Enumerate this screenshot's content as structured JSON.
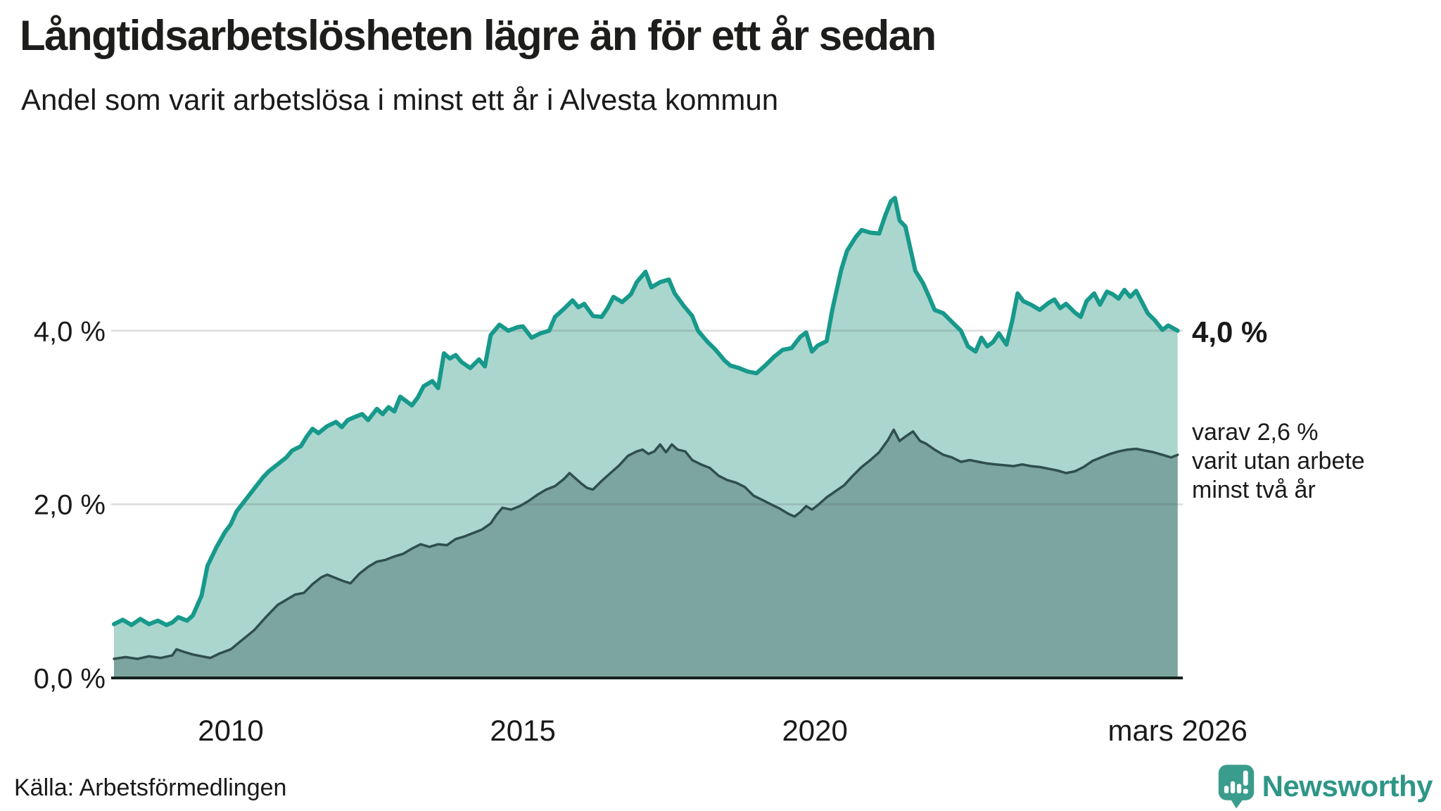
{
  "header": {
    "title": "Långtidsarbetslösheten lägre än för ett år sedan",
    "subtitle": "Andel som varit arbetslösa i minst ett år i Alvesta kommun"
  },
  "chart_data": {
    "type": "area",
    "title": "Långtidsarbetslösheten lägre än för ett år sedan",
    "subtitle": "Andel som varit arbetslösa i minst ett år i Alvesta kommun",
    "unit": "%",
    "xlabel": "",
    "ylabel": "",
    "xlim": [
      2008.0,
      2026.25
    ],
    "ylim": [
      0,
      5.9
    ],
    "grid": "horizontal",
    "legend_position": "none",
    "xticks": [
      {
        "value": 2010,
        "label": "2010"
      },
      {
        "value": 2015,
        "label": "2015"
      },
      {
        "value": 2020,
        "label": "2020"
      },
      {
        "value": 2026.21,
        "label": "mars 2026"
      }
    ],
    "yticks": [
      {
        "value": 0,
        "label": "0,0 %"
      },
      {
        "value": 2,
        "label": "2,0 %"
      },
      {
        "value": 4,
        "label": "4,0 %"
      }
    ],
    "series": [
      {
        "name": "Andel som varit arbetslösa minst ett år",
        "line_color": "#17998b",
        "fill_color": "#aad6ce",
        "end_value_label": "4,0 %",
        "points": [
          [
            2008.0,
            0.62
          ],
          [
            2008.15,
            0.67
          ],
          [
            2008.3,
            0.61
          ],
          [
            2008.45,
            0.68
          ],
          [
            2008.6,
            0.62
          ],
          [
            2008.75,
            0.66
          ],
          [
            2008.9,
            0.61
          ],
          [
            2009.0,
            0.64
          ],
          [
            2009.1,
            0.7
          ],
          [
            2009.25,
            0.66
          ],
          [
            2009.35,
            0.72
          ],
          [
            2009.5,
            0.95
          ],
          [
            2009.6,
            1.29
          ],
          [
            2009.75,
            1.5
          ],
          [
            2009.9,
            1.68
          ],
          [
            2010.0,
            1.77
          ],
          [
            2010.1,
            1.92
          ],
          [
            2010.25,
            2.05
          ],
          [
            2010.4,
            2.18
          ],
          [
            2010.55,
            2.31
          ],
          [
            2010.65,
            2.38
          ],
          [
            2010.8,
            2.46
          ],
          [
            2010.95,
            2.54
          ],
          [
            2011.05,
            2.62
          ],
          [
            2011.2,
            2.67
          ],
          [
            2011.3,
            2.78
          ],
          [
            2011.4,
            2.87
          ],
          [
            2011.5,
            2.82
          ],
          [
            2011.65,
            2.9
          ],
          [
            2011.8,
            2.95
          ],
          [
            2011.9,
            2.89
          ],
          [
            2012.0,
            2.97
          ],
          [
            2012.1,
            3.0
          ],
          [
            2012.25,
            3.04
          ],
          [
            2012.35,
            2.97
          ],
          [
            2012.5,
            3.1
          ],
          [
            2012.6,
            3.04
          ],
          [
            2012.7,
            3.12
          ],
          [
            2012.8,
            3.07
          ],
          [
            2012.9,
            3.24
          ],
          [
            2013.0,
            3.19
          ],
          [
            2013.1,
            3.14
          ],
          [
            2013.2,
            3.23
          ],
          [
            2013.3,
            3.36
          ],
          [
            2013.45,
            3.42
          ],
          [
            2013.55,
            3.34
          ],
          [
            2013.65,
            3.74
          ],
          [
            2013.75,
            3.68
          ],
          [
            2013.85,
            3.72
          ],
          [
            2013.95,
            3.64
          ],
          [
            2014.1,
            3.57
          ],
          [
            2014.25,
            3.67
          ],
          [
            2014.35,
            3.59
          ],
          [
            2014.45,
            3.95
          ],
          [
            2014.6,
            4.07
          ],
          [
            2014.75,
            4.0
          ],
          [
            2014.9,
            4.04
          ],
          [
            2015.0,
            4.05
          ],
          [
            2015.15,
            3.92
          ],
          [
            2015.3,
            3.97
          ],
          [
            2015.45,
            4.0
          ],
          [
            2015.55,
            4.16
          ],
          [
            2015.7,
            4.25
          ],
          [
            2015.85,
            4.35
          ],
          [
            2015.95,
            4.27
          ],
          [
            2016.05,
            4.31
          ],
          [
            2016.2,
            4.17
          ],
          [
            2016.35,
            4.16
          ],
          [
            2016.45,
            4.26
          ],
          [
            2016.55,
            4.39
          ],
          [
            2016.7,
            4.33
          ],
          [
            2016.85,
            4.42
          ],
          [
            2016.95,
            4.56
          ],
          [
            2017.1,
            4.68
          ],
          [
            2017.2,
            4.5
          ],
          [
            2017.35,
            4.56
          ],
          [
            2017.5,
            4.59
          ],
          [
            2017.6,
            4.43
          ],
          [
            2017.75,
            4.29
          ],
          [
            2017.9,
            4.17
          ],
          [
            2018.0,
            4.0
          ],
          [
            2018.15,
            3.88
          ],
          [
            2018.3,
            3.78
          ],
          [
            2018.45,
            3.66
          ],
          [
            2018.55,
            3.6
          ],
          [
            2018.7,
            3.57
          ],
          [
            2018.85,
            3.53
          ],
          [
            2019.0,
            3.51
          ],
          [
            2019.15,
            3.6
          ],
          [
            2019.3,
            3.7
          ],
          [
            2019.45,
            3.78
          ],
          [
            2019.6,
            3.8
          ],
          [
            2019.75,
            3.93
          ],
          [
            2019.85,
            3.98
          ],
          [
            2019.95,
            3.76
          ],
          [
            2020.05,
            3.83
          ],
          [
            2020.2,
            3.88
          ],
          [
            2020.3,
            4.25
          ],
          [
            2020.45,
            4.7
          ],
          [
            2020.55,
            4.92
          ],
          [
            2020.7,
            5.08
          ],
          [
            2020.8,
            5.16
          ],
          [
            2020.95,
            5.13
          ],
          [
            2021.1,
            5.12
          ],
          [
            2021.2,
            5.32
          ],
          [
            2021.3,
            5.49
          ],
          [
            2021.37,
            5.53
          ],
          [
            2021.45,
            5.27
          ],
          [
            2021.55,
            5.2
          ],
          [
            2021.65,
            4.9
          ],
          [
            2021.72,
            4.69
          ],
          [
            2021.85,
            4.55
          ],
          [
            2021.95,
            4.4
          ],
          [
            2022.05,
            4.24
          ],
          [
            2022.2,
            4.2
          ],
          [
            2022.35,
            4.1
          ],
          [
            2022.5,
            4.0
          ],
          [
            2022.62,
            3.82
          ],
          [
            2022.75,
            3.76
          ],
          [
            2022.85,
            3.92
          ],
          [
            2022.95,
            3.82
          ],
          [
            2023.05,
            3.87
          ],
          [
            2023.15,
            3.97
          ],
          [
            2023.28,
            3.84
          ],
          [
            2023.38,
            4.12
          ],
          [
            2023.47,
            4.43
          ],
          [
            2023.57,
            4.34
          ],
          [
            2023.7,
            4.3
          ],
          [
            2023.85,
            4.24
          ],
          [
            2024.0,
            4.32
          ],
          [
            2024.1,
            4.36
          ],
          [
            2024.2,
            4.26
          ],
          [
            2024.3,
            4.31
          ],
          [
            2024.45,
            4.21
          ],
          [
            2024.55,
            4.16
          ],
          [
            2024.65,
            4.34
          ],
          [
            2024.78,
            4.43
          ],
          [
            2024.88,
            4.3
          ],
          [
            2025.0,
            4.45
          ],
          [
            2025.1,
            4.42
          ],
          [
            2025.2,
            4.37
          ],
          [
            2025.3,
            4.47
          ],
          [
            2025.4,
            4.39
          ],
          [
            2025.5,
            4.46
          ],
          [
            2025.6,
            4.33
          ],
          [
            2025.7,
            4.2
          ],
          [
            2025.82,
            4.12
          ],
          [
            2025.95,
            4.01
          ],
          [
            2026.05,
            4.06
          ],
          [
            2026.21,
            4.0
          ]
        ]
      },
      {
        "name": "varav varit utan arbete minst två år",
        "line_color": "#2f4f4d",
        "fill_color": "#7ba59e",
        "end_value_label": "2,6 %",
        "points": [
          [
            2008.0,
            0.22
          ],
          [
            2008.2,
            0.24
          ],
          [
            2008.4,
            0.22
          ],
          [
            2008.6,
            0.25
          ],
          [
            2008.8,
            0.23
          ],
          [
            2009.0,
            0.26
          ],
          [
            2009.07,
            0.33
          ],
          [
            2009.2,
            0.3
          ],
          [
            2009.35,
            0.27
          ],
          [
            2009.5,
            0.25
          ],
          [
            2009.65,
            0.23
          ],
          [
            2009.8,
            0.28
          ],
          [
            2010.0,
            0.33
          ],
          [
            2010.2,
            0.44
          ],
          [
            2010.4,
            0.55
          ],
          [
            2010.6,
            0.7
          ],
          [
            2010.8,
            0.84
          ],
          [
            2010.95,
            0.9
          ],
          [
            2011.1,
            0.96
          ],
          [
            2011.25,
            0.98
          ],
          [
            2011.4,
            1.08
          ],
          [
            2011.55,
            1.16
          ],
          [
            2011.65,
            1.19
          ],
          [
            2011.8,
            1.15
          ],
          [
            2011.95,
            1.11
          ],
          [
            2012.05,
            1.09
          ],
          [
            2012.2,
            1.2
          ],
          [
            2012.35,
            1.28
          ],
          [
            2012.5,
            1.34
          ],
          [
            2012.65,
            1.36
          ],
          [
            2012.8,
            1.4
          ],
          [
            2012.95,
            1.43
          ],
          [
            2013.1,
            1.49
          ],
          [
            2013.25,
            1.54
          ],
          [
            2013.4,
            1.51
          ],
          [
            2013.55,
            1.54
          ],
          [
            2013.7,
            1.53
          ],
          [
            2013.85,
            1.6
          ],
          [
            2014.0,
            1.63
          ],
          [
            2014.15,
            1.67
          ],
          [
            2014.3,
            1.71
          ],
          [
            2014.45,
            1.78
          ],
          [
            2014.55,
            1.88
          ],
          [
            2014.65,
            1.96
          ],
          [
            2014.8,
            1.94
          ],
          [
            2014.95,
            1.98
          ],
          [
            2015.1,
            2.04
          ],
          [
            2015.25,
            2.11
          ],
          [
            2015.4,
            2.17
          ],
          [
            2015.55,
            2.21
          ],
          [
            2015.7,
            2.29
          ],
          [
            2015.8,
            2.36
          ],
          [
            2015.9,
            2.3
          ],
          [
            2016.0,
            2.24
          ],
          [
            2016.1,
            2.19
          ],
          [
            2016.2,
            2.17
          ],
          [
            2016.35,
            2.27
          ],
          [
            2016.5,
            2.36
          ],
          [
            2016.65,
            2.45
          ],
          [
            2016.8,
            2.56
          ],
          [
            2016.95,
            2.61
          ],
          [
            2017.05,
            2.63
          ],
          [
            2017.15,
            2.58
          ],
          [
            2017.25,
            2.61
          ],
          [
            2017.35,
            2.69
          ],
          [
            2017.45,
            2.6
          ],
          [
            2017.55,
            2.69
          ],
          [
            2017.65,
            2.63
          ],
          [
            2017.78,
            2.61
          ],
          [
            2017.9,
            2.51
          ],
          [
            2018.05,
            2.46
          ],
          [
            2018.2,
            2.42
          ],
          [
            2018.35,
            2.33
          ],
          [
            2018.5,
            2.28
          ],
          [
            2018.65,
            2.25
          ],
          [
            2018.8,
            2.2
          ],
          [
            2018.95,
            2.1
          ],
          [
            2019.1,
            2.05
          ],
          [
            2019.25,
            2.0
          ],
          [
            2019.4,
            1.95
          ],
          [
            2019.55,
            1.89
          ],
          [
            2019.65,
            1.86
          ],
          [
            2019.75,
            1.91
          ],
          [
            2019.85,
            1.98
          ],
          [
            2019.95,
            1.94
          ],
          [
            2020.05,
            1.99
          ],
          [
            2020.2,
            2.08
          ],
          [
            2020.35,
            2.15
          ],
          [
            2020.5,
            2.22
          ],
          [
            2020.65,
            2.33
          ],
          [
            2020.8,
            2.43
          ],
          [
            2020.95,
            2.51
          ],
          [
            2021.1,
            2.6
          ],
          [
            2021.25,
            2.74
          ],
          [
            2021.35,
            2.86
          ],
          [
            2021.45,
            2.73
          ],
          [
            2021.55,
            2.78
          ],
          [
            2021.68,
            2.84
          ],
          [
            2021.8,
            2.73
          ],
          [
            2021.9,
            2.7
          ],
          [
            2022.05,
            2.63
          ],
          [
            2022.2,
            2.57
          ],
          [
            2022.35,
            2.54
          ],
          [
            2022.5,
            2.49
          ],
          [
            2022.65,
            2.51
          ],
          [
            2022.8,
            2.49
          ],
          [
            2022.95,
            2.47
          ],
          [
            2023.1,
            2.46
          ],
          [
            2023.25,
            2.45
          ],
          [
            2023.4,
            2.44
          ],
          [
            2023.55,
            2.46
          ],
          [
            2023.7,
            2.44
          ],
          [
            2023.85,
            2.43
          ],
          [
            2024.0,
            2.41
          ],
          [
            2024.15,
            2.39
          ],
          [
            2024.3,
            2.36
          ],
          [
            2024.45,
            2.38
          ],
          [
            2024.6,
            2.43
          ],
          [
            2024.75,
            2.5
          ],
          [
            2024.9,
            2.54
          ],
          [
            2025.05,
            2.58
          ],
          [
            2025.2,
            2.61
          ],
          [
            2025.35,
            2.63
          ],
          [
            2025.5,
            2.64
          ],
          [
            2025.65,
            2.62
          ],
          [
            2025.8,
            2.6
          ],
          [
            2025.95,
            2.57
          ],
          [
            2026.1,
            2.54
          ],
          [
            2026.21,
            2.57
          ]
        ]
      }
    ]
  },
  "annotations": {
    "end_value": "4,0 %",
    "secondary": {
      "lines": [
        "varav 2,6 %",
        "varit utan arbete",
        "minst två år"
      ]
    }
  },
  "footer": {
    "source": "Källa: Arbetsförmedlingen",
    "brand": "Newsworthy"
  },
  "colors": {
    "accent_teal": "#17998b",
    "light_fill": "#aad6ce",
    "dark_line": "#2f4f4d",
    "dark_fill": "#7ba59e",
    "gridline": "#e2e2e2",
    "axis": "#16201f",
    "text": "#1a1a1a",
    "brand_teal": "#2e9687",
    "brand_icon": "#3a9c8d"
  }
}
